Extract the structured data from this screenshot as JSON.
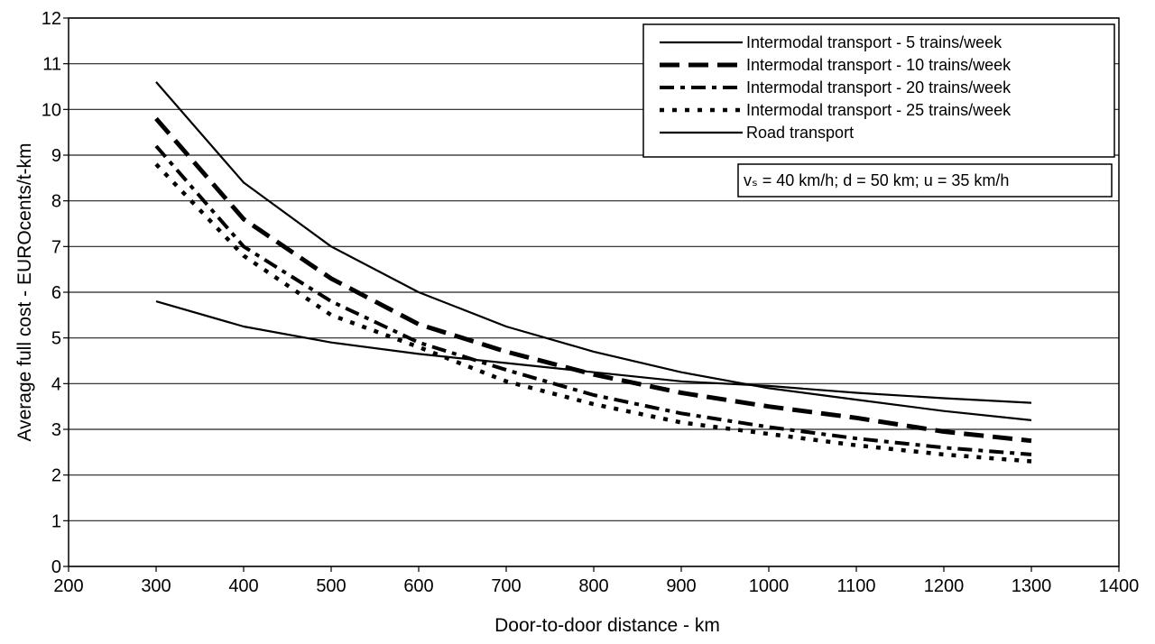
{
  "chart_data": {
    "type": "line",
    "title": "",
    "xlabel": "Door-to-door distance - km",
    "ylabel": "Average full cost - EUROcents/t-km",
    "xlim": [
      200,
      1400
    ],
    "ylim": [
      0,
      12
    ],
    "xticks": [
      200,
      300,
      400,
      500,
      600,
      700,
      800,
      900,
      1000,
      1100,
      1200,
      1300,
      1400
    ],
    "yticks": [
      0,
      1,
      2,
      3,
      4,
      5,
      6,
      7,
      8,
      9,
      10,
      11,
      12
    ],
    "grid": "horizontal",
    "legend_position": "top-right",
    "annotation": "vₛ = 40 km/h; d = 50 km; u = 35 km/h",
    "x": [
      300,
      400,
      500,
      600,
      700,
      800,
      900,
      1000,
      1100,
      1200,
      1300
    ],
    "series": [
      {
        "name": "Intermodal transport - 5 trains/week",
        "style": "solid",
        "values": [
          10.6,
          8.4,
          7.0,
          6.0,
          5.25,
          4.7,
          4.25,
          3.9,
          3.65,
          3.4,
          3.2
        ]
      },
      {
        "name": "Intermodal transport - 10 trains/week",
        "style": "longdash",
        "values": [
          9.8,
          7.6,
          6.3,
          5.3,
          4.7,
          4.2,
          3.8,
          3.5,
          3.25,
          2.95,
          2.75
        ]
      },
      {
        "name": "Intermodal transport - 20 trains/week",
        "style": "dashdot",
        "values": [
          9.2,
          7.0,
          5.8,
          4.9,
          4.3,
          3.75,
          3.35,
          3.05,
          2.8,
          2.6,
          2.45
        ]
      },
      {
        "name": "Intermodal transport - 25 trains/week",
        "style": "dotted",
        "values": [
          8.8,
          6.8,
          5.5,
          4.8,
          4.05,
          3.55,
          3.15,
          2.9,
          2.65,
          2.45,
          2.3
        ]
      },
      {
        "name": "Road transport",
        "style": "solid-thin",
        "values": [
          5.8,
          5.25,
          4.9,
          4.65,
          4.45,
          4.25,
          4.05,
          3.95,
          3.8,
          3.68,
          3.58
        ]
      }
    ]
  }
}
